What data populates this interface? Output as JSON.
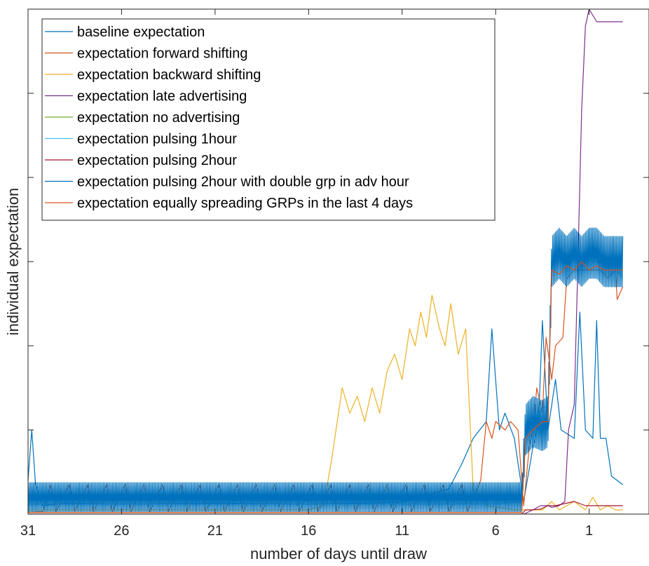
{
  "chart_data": {
    "type": "line",
    "title": "",
    "xlabel": "number of days until draw",
    "ylabel": "individual expectation",
    "xlim": [
      31,
      -2.2
    ],
    "ylim": [
      0,
      6
    ],
    "x_ticks": [
      31,
      26,
      21,
      16,
      11,
      6,
      1
    ],
    "x_tick_labels": [
      "31",
      "26",
      "21",
      "16",
      "11",
      "6",
      "1"
    ],
    "y_ticks": [
      1,
      2,
      3,
      4,
      5,
      6
    ],
    "y_tick_labels_shown": false,
    "grid": false,
    "legend_position": "top-left",
    "series": [
      {
        "name": "baseline expectation",
        "color": "#0072BD",
        "points": [
          [
            31,
            0.4
          ],
          [
            30.8,
            1.0
          ],
          [
            30.6,
            0.35
          ],
          [
            30.2,
            0.1
          ],
          [
            29,
            0.13
          ],
          [
            26,
            0.12
          ],
          [
            21,
            0.13
          ],
          [
            16,
            0.12
          ],
          [
            11,
            0.14
          ],
          [
            8.5,
            0.3
          ],
          [
            7.8,
            0.6
          ],
          [
            7.2,
            0.9
          ],
          [
            6.5,
            1.1
          ],
          [
            6.2,
            2.2
          ],
          [
            5.8,
            1.0
          ],
          [
            5.5,
            1.2
          ],
          [
            5,
            0.9
          ],
          [
            4.5,
            0.15
          ],
          [
            4,
            0.8
          ],
          [
            3.7,
            1.1
          ],
          [
            3.5,
            2.3
          ],
          [
            3.2,
            1.0
          ],
          [
            2.8,
            1.6
          ],
          [
            2.5,
            1.0
          ],
          [
            1.8,
            0.9
          ],
          [
            1.5,
            2.4
          ],
          [
            1.2,
            1.0
          ],
          [
            0.8,
            0.9
          ],
          [
            0.6,
            2.3
          ],
          [
            0.4,
            0.9
          ],
          [
            0.1,
            0.9
          ],
          [
            -0.2,
            0.45
          ],
          [
            -0.8,
            0.35
          ]
        ]
      },
      {
        "name": "expectation forward shifting",
        "color": "#D95319",
        "points": [
          [
            31,
            0.02
          ],
          [
            30.2,
            0.03
          ],
          [
            29.8,
            0.35
          ],
          [
            29.5,
            0.03
          ],
          [
            28.8,
            0.35
          ],
          [
            28.5,
            0.03
          ],
          [
            27.8,
            0.35
          ],
          [
            27.5,
            0.03
          ],
          [
            26.8,
            0.35
          ],
          [
            26.5,
            0.03
          ],
          [
            25.8,
            0.35
          ],
          [
            25.5,
            0.03
          ],
          [
            24.8,
            0.35
          ],
          [
            24.5,
            0.03
          ],
          [
            23.8,
            0.35
          ],
          [
            23.5,
            0.03
          ],
          [
            22.8,
            0.35
          ],
          [
            22.5,
            0.03
          ],
          [
            21.8,
            0.35
          ],
          [
            21.5,
            0.03
          ],
          [
            20.8,
            0.35
          ],
          [
            20.5,
            0.03
          ],
          [
            19.8,
            0.35
          ],
          [
            19.5,
            0.03
          ],
          [
            18.8,
            0.35
          ],
          [
            18.5,
            0.03
          ],
          [
            17.8,
            0.35
          ],
          [
            17.5,
            0.03
          ],
          [
            16.8,
            0.35
          ],
          [
            16.5,
            0.03
          ],
          [
            15.8,
            0.35
          ],
          [
            15.5,
            0.03
          ],
          [
            14.8,
            0.35
          ],
          [
            14.5,
            0.03
          ],
          [
            13.8,
            0.35
          ],
          [
            13.5,
            0.03
          ],
          [
            12.8,
            0.35
          ],
          [
            12.5,
            0.03
          ],
          [
            11.8,
            0.35
          ],
          [
            11.5,
            0.03
          ],
          [
            10.8,
            0.35
          ],
          [
            10.5,
            0.03
          ],
          [
            9.8,
            0.35
          ],
          [
            9.5,
            0.03
          ],
          [
            8.8,
            0.35
          ],
          [
            8.5,
            0.03
          ],
          [
            7.8,
            0.35
          ],
          [
            7.5,
            0.03
          ],
          [
            6.8,
            0.4
          ],
          [
            6.5,
            1.1
          ],
          [
            6.2,
            0.9
          ],
          [
            6,
            1.1
          ],
          [
            5.5,
            1.0
          ],
          [
            5.2,
            1.1
          ],
          [
            4.8,
            1.0
          ],
          [
            4.5,
            0.1
          ],
          [
            4.2,
            0.8
          ],
          [
            4,
            1.0
          ],
          [
            3.8,
            1.5
          ],
          [
            3.5,
            1.2
          ],
          [
            3.3,
            2.1
          ],
          [
            3.0,
            1.6
          ],
          [
            2.8,
            2.0
          ],
          [
            2.4,
            2.1
          ],
          [
            2.2,
            2.8
          ],
          [
            1.8,
            2.9
          ],
          [
            1.2,
            2.9
          ],
          [
            0.8,
            2.9
          ],
          [
            0.4,
            2.9
          ],
          [
            0,
            2.8
          ],
          [
            -0.4,
            2.9
          ],
          [
            -0.5,
            2.55
          ],
          [
            -0.8,
            2.7
          ]
        ]
      },
      {
        "name": "expectation backward shifting",
        "color": "#EDB120",
        "points": [
          [
            31,
            0.05
          ],
          [
            16,
            0.05
          ],
          [
            15.2,
            0.1
          ],
          [
            14.8,
            0.6
          ],
          [
            14.2,
            1.5
          ],
          [
            13.8,
            1.2
          ],
          [
            13.4,
            1.4
          ],
          [
            13,
            1.1
          ],
          [
            12.6,
            1.5
          ],
          [
            12.2,
            1.2
          ],
          [
            11.8,
            1.7
          ],
          [
            11.4,
            1.9
          ],
          [
            11,
            1.6
          ],
          [
            10.6,
            2.2
          ],
          [
            10.3,
            2.0
          ],
          [
            10,
            2.4
          ],
          [
            9.7,
            2.1
          ],
          [
            9.4,
            2.6
          ],
          [
            9,
            2.2
          ],
          [
            8.7,
            2.0
          ],
          [
            8.4,
            2.5
          ],
          [
            8,
            1.9
          ],
          [
            7.6,
            2.2
          ],
          [
            7.2,
            0.3
          ],
          [
            6.5,
            0.1
          ],
          [
            5,
            0.05
          ],
          [
            4.5,
            0.05
          ],
          [
            3.5,
            0.05
          ],
          [
            3,
            0.15
          ],
          [
            2.6,
            0.05
          ],
          [
            1.8,
            0.15
          ],
          [
            1.2,
            0.05
          ],
          [
            0.8,
            0.2
          ],
          [
            0.4,
            0.05
          ],
          [
            0,
            0.1
          ],
          [
            -0.4,
            0.05
          ],
          [
            -0.8,
            0.05
          ]
        ]
      },
      {
        "name": "expectation late advertising",
        "color": "#7E2F8E",
        "points": [
          [
            31,
            0.0
          ],
          [
            4.5,
            0.0
          ],
          [
            4,
            0.05
          ],
          [
            3.6,
            0.1
          ],
          [
            3.2,
            0.1
          ],
          [
            3,
            0.08
          ],
          [
            2.6,
            0.1
          ],
          [
            2.3,
            0.15
          ],
          [
            2.1,
            1.0
          ],
          [
            1.8,
            1.3
          ],
          [
            1.6,
            3.0
          ],
          [
            1.4,
            4.8
          ],
          [
            1.2,
            5.8
          ],
          [
            1.0,
            6.0
          ],
          [
            0.6,
            5.85
          ],
          [
            0.4,
            5.85
          ],
          [
            -0.8,
            5.85
          ]
        ]
      },
      {
        "name": "expectation no advertising",
        "color": "#77AC30",
        "points": [
          [
            31,
            0.0
          ],
          [
            -0.8,
            0.0
          ]
        ]
      },
      {
        "name": "expectation pulsing 1hour",
        "color": "#4DBEEE",
        "points": [
          [
            31,
            0.12
          ],
          [
            30,
            0.12
          ],
          [
            26,
            0.12
          ],
          [
            21,
            0.12
          ],
          [
            16,
            0.12
          ],
          [
            11,
            0.12
          ],
          [
            6,
            0.12
          ],
          [
            4.6,
            0.15
          ],
          [
            4.4,
            0.9
          ],
          [
            4.0,
            1.1
          ],
          [
            3.5,
            1.25
          ],
          [
            3.2,
            1.3
          ],
          [
            3.0,
            3.0
          ],
          [
            2.6,
            3.0
          ],
          [
            2.2,
            3.1
          ],
          [
            1.8,
            3.0
          ],
          [
            1.4,
            3.1
          ],
          [
            1.0,
            3.0
          ],
          [
            0.6,
            3.0
          ],
          [
            0.2,
            3.0
          ],
          [
            -0.2,
            3.0
          ],
          [
            -0.8,
            2.8
          ]
        ]
      },
      {
        "name": "expectation pulsing 2hour",
        "color": "#A2142F",
        "points": [
          [
            31,
            0.0
          ],
          [
            30,
            0.0
          ],
          [
            4.6,
            0.0
          ],
          [
            4.4,
            0.05
          ],
          [
            4,
            0.05
          ],
          [
            3.6,
            0.06
          ],
          [
            3.2,
            0.1
          ],
          [
            2.8,
            0.1
          ],
          [
            1.8,
            0.15
          ],
          [
            1.2,
            0.1
          ],
          [
            -0.8,
            0.1
          ]
        ]
      },
      {
        "name": "expectation pulsing 2hour with double grp in adv hour",
        "color": "#0072BD",
        "points": [
          [
            31,
            0.2
          ],
          [
            30,
            0.2
          ],
          [
            26,
            0.2
          ],
          [
            21,
            0.2
          ],
          [
            16,
            0.2
          ],
          [
            11,
            0.2
          ],
          [
            6,
            0.2
          ],
          [
            4.6,
            0.2
          ],
          [
            4.4,
            1.0
          ],
          [
            4.0,
            1.1
          ],
          [
            3.5,
            1.05
          ],
          [
            3.2,
            1.1
          ],
          [
            3.0,
            3.0
          ],
          [
            2.6,
            3.1
          ],
          [
            2.2,
            3.0
          ],
          [
            1.8,
            3.1
          ],
          [
            1.4,
            3.0
          ],
          [
            1.0,
            3.1
          ],
          [
            0.6,
            3.1
          ],
          [
            0.2,
            3.0
          ],
          [
            -0.2,
            3.0
          ],
          [
            -0.8,
            3.0
          ]
        ],
        "band": {
          "from_x": 31,
          "to_x": -0.8,
          "amplitude_before_4_5": 0.35,
          "amplitude_after_4_5": 0.6
        }
      },
      {
        "name": "expectation equally spreading GRPs in the last 4 days",
        "color": "#D95319",
        "points": [
          [
            31,
            0.02
          ],
          [
            4.6,
            0.02
          ],
          [
            4.4,
            0.9
          ],
          [
            4.0,
            1.0
          ],
          [
            3.5,
            1.1
          ],
          [
            3.2,
            1.1
          ],
          [
            3.0,
            2.9
          ],
          [
            2.6,
            2.85
          ],
          [
            2.2,
            2.95
          ],
          [
            1.8,
            2.9
          ],
          [
            1.4,
            3.0
          ],
          [
            1.0,
            2.9
          ],
          [
            0.6,
            2.95
          ],
          [
            0.2,
            2.9
          ],
          [
            -0.2,
            2.9
          ],
          [
            -0.8,
            2.9
          ]
        ]
      }
    ]
  }
}
